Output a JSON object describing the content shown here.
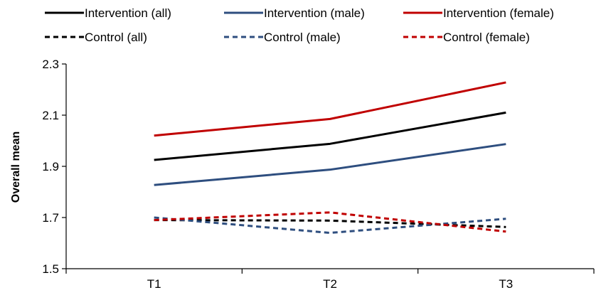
{
  "chart_data": {
    "type": "line",
    "title": "",
    "xlabel": "",
    "ylabel": "Overall mean",
    "categories": [
      "T1",
      "T2",
      "T3"
    ],
    "ylim": [
      1.5,
      2.3
    ],
    "yticks": [
      "1.5",
      "1.7",
      "1.9",
      "2.1",
      "2.3"
    ],
    "grid": false,
    "legend_position": "top",
    "series": [
      {
        "name": "Intervention (all)",
        "values": [
          1.925,
          1.988,
          2.11
        ],
        "color": "#000000",
        "dashed": false
      },
      {
        "name": "Intervention (male)",
        "values": [
          1.827,
          1.887,
          1.987
        ],
        "color": "#2e4e7f",
        "dashed": false
      },
      {
        "name": "Intervention (female)",
        "values": [
          2.02,
          2.085,
          2.228
        ],
        "color": "#c00000",
        "dashed": false
      },
      {
        "name": "Control (all)",
        "values": [
          1.69,
          1.688,
          1.663
        ],
        "color": "#000000",
        "dashed": true
      },
      {
        "name": "Control (male)",
        "values": [
          1.7,
          1.64,
          1.695
        ],
        "color": "#2e4e7f",
        "dashed": true
      },
      {
        "name": "Control (female)",
        "values": [
          1.69,
          1.72,
          1.645
        ],
        "color": "#c00000",
        "dashed": true
      }
    ]
  }
}
